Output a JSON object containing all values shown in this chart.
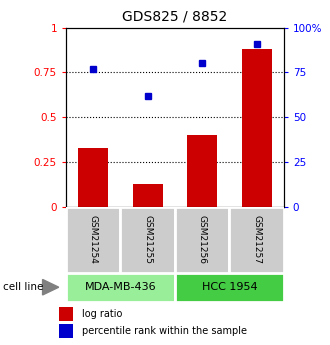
{
  "title": "GDS825 / 8852",
  "samples": [
    "GSM21254",
    "GSM21255",
    "GSM21256",
    "GSM21257"
  ],
  "log_ratio": [
    0.33,
    0.13,
    0.4,
    0.88
  ],
  "percentile_rank": [
    0.77,
    0.62,
    0.8,
    0.91
  ],
  "ylim": [
    0,
    1
  ],
  "yticks": [
    0,
    0.25,
    0.5,
    0.75,
    1.0
  ],
  "ytick_labels_left": [
    "0",
    "0.25",
    "0.5",
    "0.75",
    "1"
  ],
  "ytick_labels_right": [
    "0",
    "25",
    "50",
    "75",
    "100%"
  ],
  "hlines": [
    0.25,
    0.5,
    0.75
  ],
  "bar_color": "#cc0000",
  "dot_color": "#0000cc",
  "cell_groups": [
    {
      "label": "MDA-MB-436",
      "indices": [
        0,
        1
      ],
      "color": "#99ee99"
    },
    {
      "label": "HCC 1954",
      "indices": [
        2,
        3
      ],
      "color": "#44cc44"
    }
  ],
  "sample_box_color": "#cccccc",
  "legend_items": [
    {
      "color": "#cc0000",
      "label": "log ratio"
    },
    {
      "color": "#0000cc",
      "label": "percentile rank within the sample"
    }
  ],
  "cell_line_label": "cell line",
  "background_color": "#ffffff"
}
